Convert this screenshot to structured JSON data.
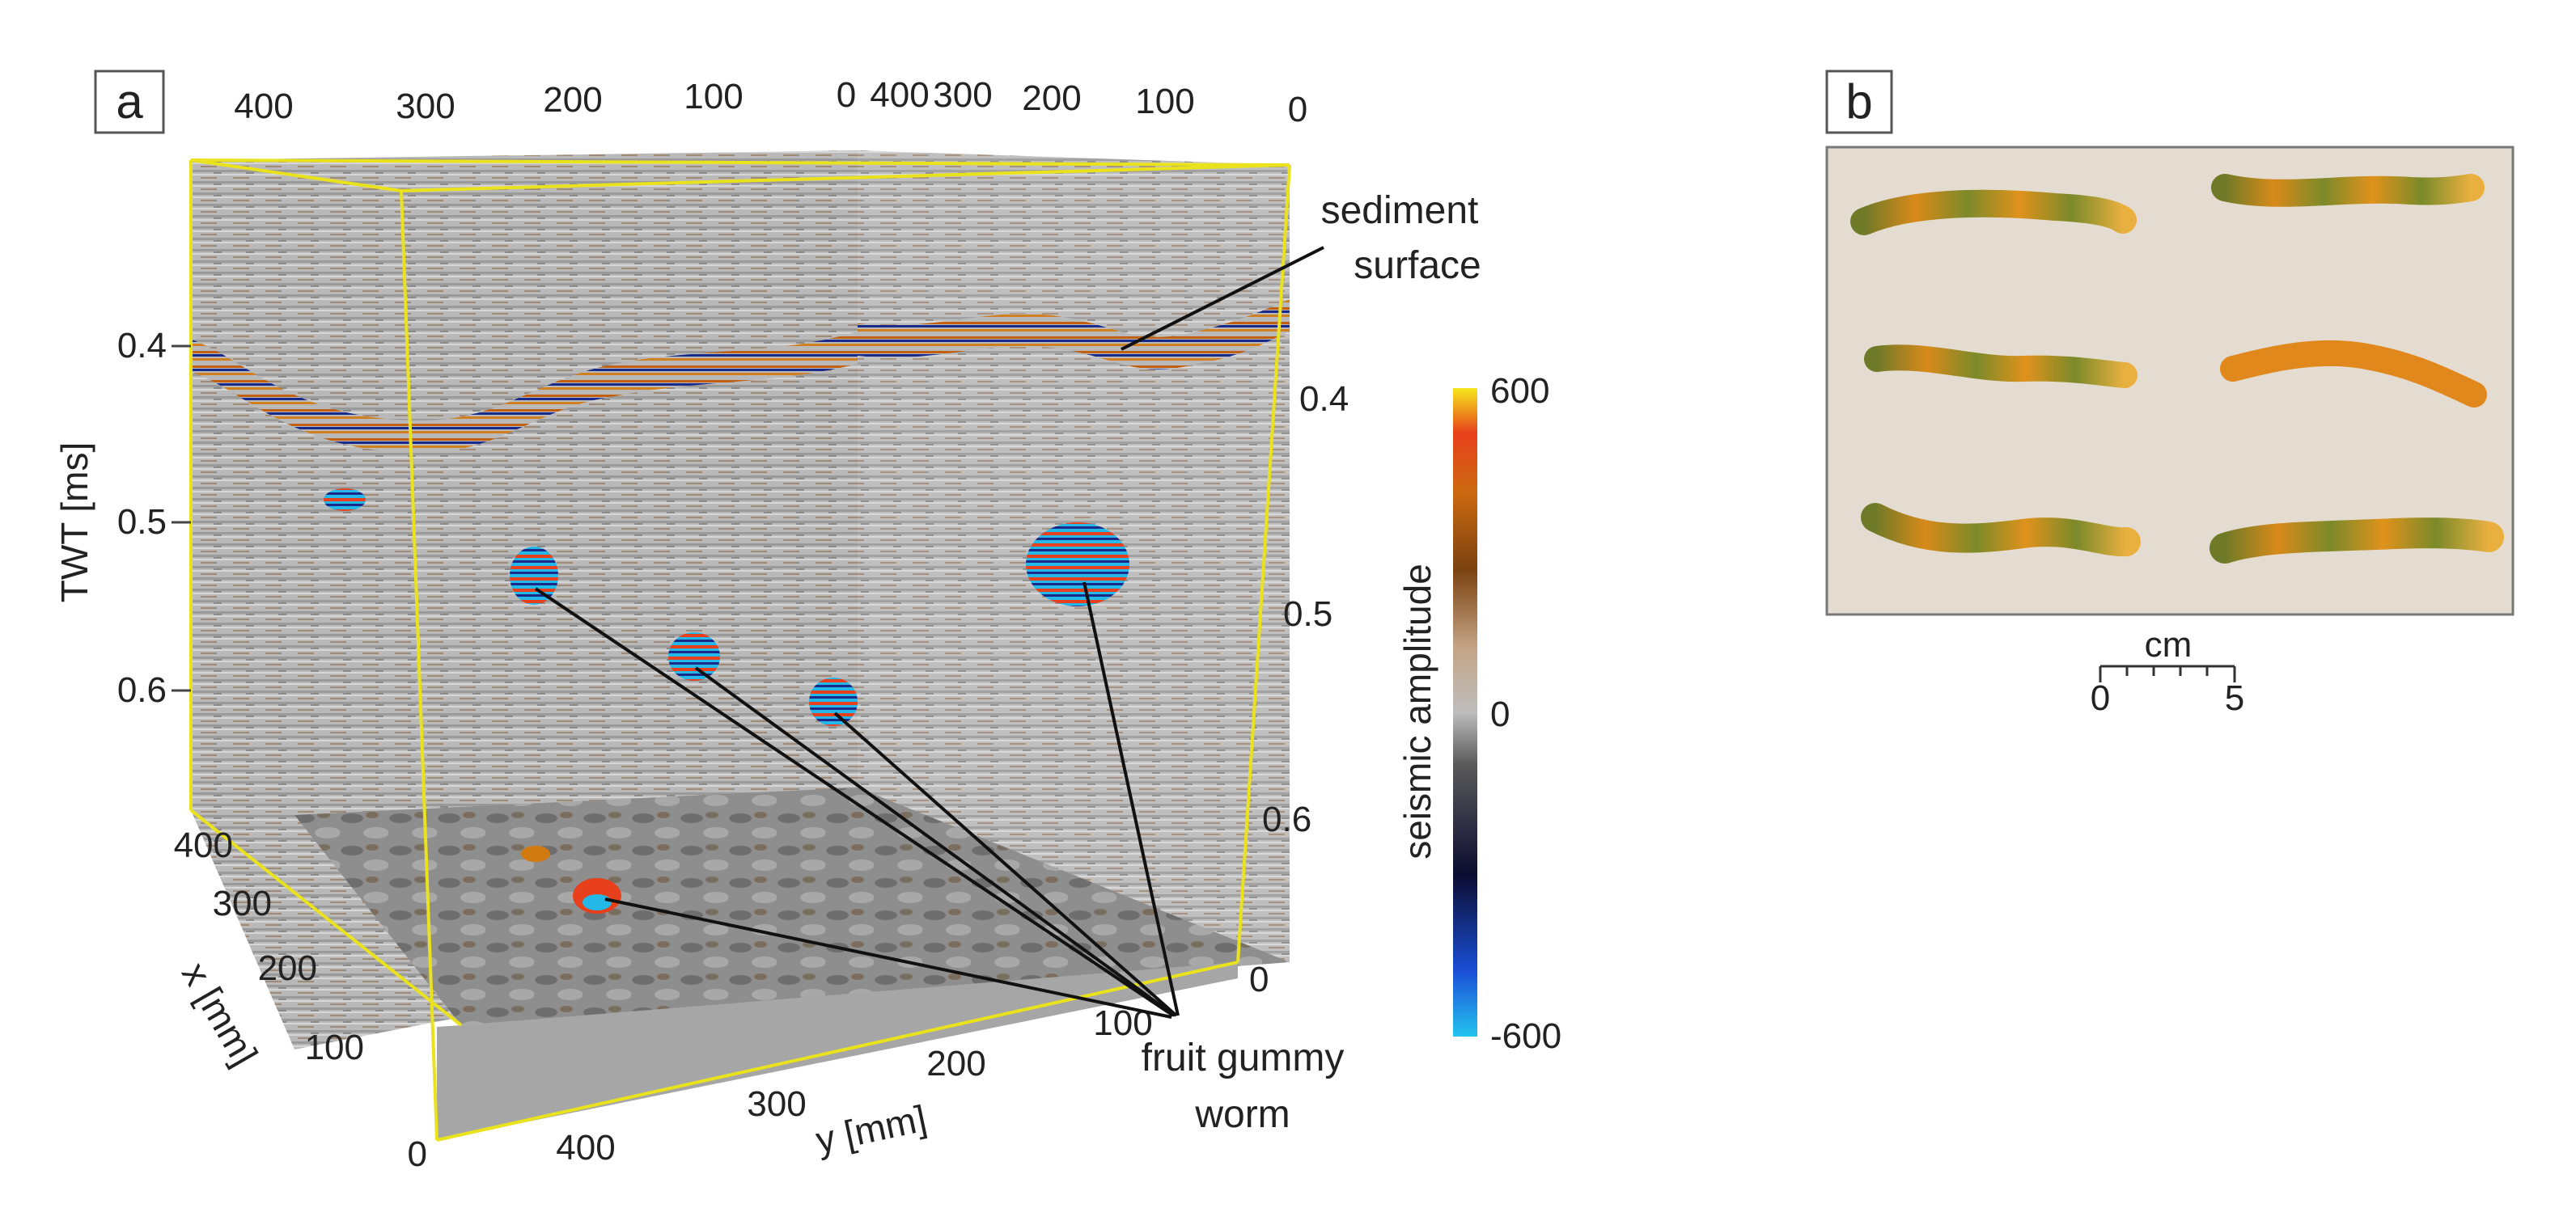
{
  "panels": {
    "a": {
      "label": "a",
      "top_left_y_ticks": [
        "400",
        "300",
        "200",
        "100",
        "0"
      ],
      "top_right_x_ticks": [
        "400",
        "300",
        "200",
        "100",
        "0"
      ],
      "twt_axis": {
        "title": "TWT [ms]",
        "ticks": [
          "0.4",
          "0.5",
          "0.6"
        ]
      },
      "right_twt_ticks": [
        "0.4",
        "0.5",
        "0.6"
      ],
      "x_axis": {
        "title": "x [mm]",
        "ticks": [
          "400",
          "300",
          "200",
          "100",
          "0"
        ]
      },
      "y_axis": {
        "title": "y [mm]",
        "ticks": [
          "400",
          "300",
          "200",
          "100"
        ]
      },
      "right_bottom_zero": "0",
      "annotations": {
        "sediment_surface_line1": "sediment",
        "sediment_surface_line2": "surface",
        "worm_line1": "fruit gummy",
        "worm_line2": "worm"
      },
      "colorbar": {
        "title": "seismic amplitude",
        "max": "600",
        "mid": "0",
        "min": "-600",
        "colors": [
          "#23c4ef",
          "#1a4fd6",
          "#101040",
          "#555555",
          "#b4b4b4",
          "#c9a78a",
          "#8a4c10",
          "#d07a10",
          "#e8401c",
          "#f5e21c"
        ]
      },
      "box_edge_color": "#e9e21c"
    },
    "b": {
      "label": "b",
      "scale_unit": "cm",
      "scale_min": "0",
      "scale_max": "5",
      "photo_background": "#e4dcd0"
    }
  }
}
